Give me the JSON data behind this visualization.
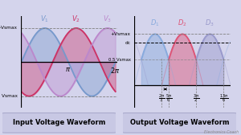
{
  "fig_width": 3.0,
  "fig_height": 1.68,
  "dpi": 100,
  "bg_color": "#d4d4ec",
  "input_title": "Input Voltage Waveform",
  "output_title": "Output Voltage Waveform",
  "v1_color": "#7799cc",
  "v2_color": "#cc3366",
  "v3_color": "#bb88cc",
  "d1_color": "#88aadd",
  "d2_color": "#dd5577",
  "d3_color": "#9999cc",
  "watermark": "Electronics Coach",
  "label_box_color": "#c8c8e4",
  "label_box_edge": "#aaaacc"
}
